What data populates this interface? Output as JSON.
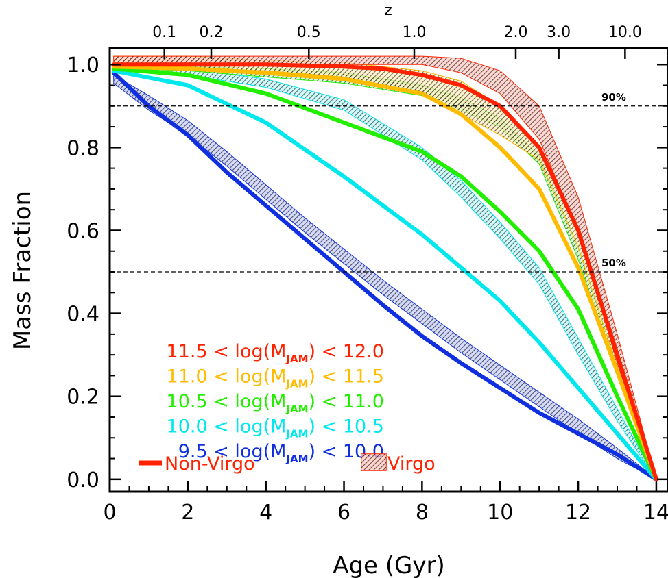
{
  "chart_data": {
    "type": "line",
    "xlabel": "Age (Gyr)",
    "ylabel": "Mass Fraction",
    "top_axis_label": "z",
    "xlim": [
      0,
      14.3
    ],
    "ylim": [
      -0.03,
      1.04
    ],
    "x_ticks": [
      0,
      2,
      4,
      6,
      8,
      10,
      12,
      14
    ],
    "x_tick_labels": [
      "0",
      "2",
      "4",
      "6",
      "8",
      "10",
      "12",
      "14"
    ],
    "y_ticks": [
      0.0,
      0.2,
      0.4,
      0.6,
      0.8,
      1.0
    ],
    "y_tick_labels": [
      "0.0",
      "0.2",
      "0.4",
      "0.6",
      "0.8",
      "1.0"
    ],
    "z_ticks": [
      {
        "label": "0.1",
        "age": 1.4
      },
      {
        "label": "0.2",
        "age": 2.6
      },
      {
        "label": "0.5",
        "age": 5.1
      },
      {
        "label": "1.0",
        "age": 7.8
      },
      {
        "label": "2.0",
        "age": 10.4
      },
      {
        "label": "3.0",
        "age": 11.5
      },
      {
        "label": "10.0",
        "age": 13.2
      }
    ],
    "reference_lines": [
      {
        "y": 0.9,
        "label": "90%"
      },
      {
        "y": 0.5,
        "label": "50%"
      }
    ],
    "series": [
      {
        "name": "11.5 < log(M_JAM) < 12.0",
        "color": "#ff2200",
        "non_virgo": [
          [
            0.1,
            1.0
          ],
          [
            2,
            1.0
          ],
          [
            4,
            1.0
          ],
          [
            6,
            0.995
          ],
          [
            7,
            0.99
          ],
          [
            8,
            0.975
          ],
          [
            9,
            0.95
          ],
          [
            10,
            0.9
          ],
          [
            11,
            0.8
          ],
          [
            12,
            0.6
          ],
          [
            13,
            0.3
          ],
          [
            14,
            0.0
          ]
        ],
        "virgo_upper": [
          [
            0.1,
            1.02
          ],
          [
            2,
            1.02
          ],
          [
            4,
            1.02
          ],
          [
            6,
            1.02
          ],
          [
            8,
            1.02
          ],
          [
            9,
            1.015
          ],
          [
            10,
            0.985
          ],
          [
            11,
            0.9
          ],
          [
            12,
            0.68
          ],
          [
            13,
            0.35
          ],
          [
            14,
            0.0
          ]
        ],
        "virgo_lower": [
          [
            0.1,
            1.0
          ],
          [
            2,
            1.0
          ],
          [
            4,
            1.0
          ],
          [
            6,
            1.0
          ],
          [
            8,
            1.0
          ],
          [
            9,
            0.98
          ],
          [
            10,
            0.93
          ],
          [
            11,
            0.82
          ],
          [
            12,
            0.6
          ],
          [
            13,
            0.28
          ],
          [
            14,
            0.0
          ]
        ]
      },
      {
        "name": "11.0 < log(M_JAM) < 11.5",
        "color": "#ffbb00",
        "non_virgo": [
          [
            0.1,
            0.995
          ],
          [
            2,
            0.99
          ],
          [
            4,
            0.98
          ],
          [
            6,
            0.965
          ],
          [
            8,
            0.93
          ],
          [
            9,
            0.88
          ],
          [
            10,
            0.8
          ],
          [
            11,
            0.7
          ],
          [
            12,
            0.51
          ],
          [
            13,
            0.26
          ],
          [
            14,
            0.0
          ]
        ],
        "virgo_upper": [
          [
            0.1,
            1.02
          ],
          [
            2,
            1.02
          ],
          [
            4,
            1.01
          ],
          [
            6,
            1.005
          ],
          [
            8,
            0.985
          ],
          [
            9,
            0.96
          ],
          [
            10,
            0.9
          ],
          [
            11,
            0.8
          ],
          [
            12,
            0.6
          ],
          [
            13,
            0.3
          ],
          [
            14,
            0.0
          ]
        ],
        "virgo_lower": [
          [
            0.1,
            0.995
          ],
          [
            2,
            0.99
          ],
          [
            4,
            0.985
          ],
          [
            6,
            0.97
          ],
          [
            8,
            0.93
          ],
          [
            9,
            0.88
          ],
          [
            10,
            0.83
          ],
          [
            11,
            0.77
          ],
          [
            12,
            0.56
          ],
          [
            13,
            0.27
          ],
          [
            14,
            0.0
          ]
        ]
      },
      {
        "name": "10.5 < log(M_JAM) < 11.0",
        "color": "#22ee00",
        "non_virgo": [
          [
            0.1,
            0.99
          ],
          [
            2,
            0.975
          ],
          [
            4,
            0.93
          ],
          [
            6,
            0.86
          ],
          [
            8,
            0.79
          ],
          [
            9,
            0.73
          ],
          [
            10,
            0.645
          ],
          [
            11,
            0.55
          ],
          [
            12,
            0.41
          ],
          [
            13,
            0.2
          ],
          [
            14,
            0.0
          ]
        ],
        "virgo_upper": [
          [
            0.1,
            1.0
          ],
          [
            2,
            0.995
          ],
          [
            4,
            0.99
          ],
          [
            6,
            0.98
          ],
          [
            8,
            0.95
          ],
          [
            9,
            0.92
          ],
          [
            10,
            0.87
          ],
          [
            11,
            0.78
          ],
          [
            12,
            0.56
          ],
          [
            13,
            0.27
          ],
          [
            14,
            0.0
          ]
        ],
        "virgo_lower": [
          [
            0.1,
            0.99
          ],
          [
            2,
            0.985
          ],
          [
            4,
            0.97
          ],
          [
            6,
            0.955
          ],
          [
            8,
            0.925
          ],
          [
            9,
            0.89
          ],
          [
            10,
            0.85
          ],
          [
            11,
            0.76
          ],
          [
            12,
            0.53
          ],
          [
            13,
            0.25
          ],
          [
            14,
            0.0
          ]
        ]
      },
      {
        "name": "10.0 < log(M_JAM) < 10.5",
        "color": "#00e8ee",
        "non_virgo": [
          [
            0.1,
            0.985
          ],
          [
            2,
            0.95
          ],
          [
            4,
            0.86
          ],
          [
            6,
            0.73
          ],
          [
            8,
            0.59
          ],
          [
            10,
            0.43
          ],
          [
            11,
            0.33
          ],
          [
            12,
            0.22
          ],
          [
            13,
            0.11
          ],
          [
            14,
            0.0
          ]
        ],
        "virgo_upper": [
          [
            0.1,
            0.995
          ],
          [
            2,
            0.99
          ],
          [
            4,
            0.965
          ],
          [
            6,
            0.915
          ],
          [
            8,
            0.8
          ],
          [
            9,
            0.72
          ],
          [
            10,
            0.62
          ],
          [
            11,
            0.51
          ],
          [
            12,
            0.34
          ],
          [
            13,
            0.17
          ],
          [
            14,
            0.0
          ]
        ],
        "virgo_lower": [
          [
            0.1,
            0.985
          ],
          [
            2,
            0.975
          ],
          [
            4,
            0.945
          ],
          [
            6,
            0.89
          ],
          [
            8,
            0.77
          ],
          [
            9,
            0.68
          ],
          [
            10,
            0.58
          ],
          [
            11,
            0.47
          ],
          [
            12,
            0.3
          ],
          [
            13,
            0.14
          ],
          [
            14,
            0.0
          ]
        ]
      },
      {
        "name": "9.5 < log(M_JAM) < 10.0",
        "color": "#1030e0",
        "non_virgo": [
          [
            0.1,
            0.98
          ],
          [
            1,
            0.9
          ],
          [
            2,
            0.83
          ],
          [
            3,
            0.74
          ],
          [
            4,
            0.66
          ],
          [
            5,
            0.58
          ],
          [
            6,
            0.5
          ],
          [
            7,
            0.42
          ],
          [
            8,
            0.345
          ],
          [
            9,
            0.28
          ],
          [
            10,
            0.22
          ],
          [
            11,
            0.16
          ],
          [
            12,
            0.11
          ],
          [
            13,
            0.06
          ],
          [
            14,
            0.0
          ]
        ],
        "virgo_upper": [
          [
            0.1,
            0.975
          ],
          [
            1,
            0.925
          ],
          [
            2,
            0.865
          ],
          [
            3,
            0.79
          ],
          [
            4,
            0.71
          ],
          [
            5,
            0.63
          ],
          [
            6,
            0.555
          ],
          [
            7,
            0.48
          ],
          [
            8,
            0.41
          ],
          [
            9,
            0.34
          ],
          [
            10,
            0.275
          ],
          [
            11,
            0.21
          ],
          [
            12,
            0.145
          ],
          [
            13,
            0.075
          ],
          [
            14,
            0.0
          ]
        ],
        "virgo_lower": [
          [
            0.1,
            0.955
          ],
          [
            1,
            0.89
          ],
          [
            2,
            0.83
          ],
          [
            3,
            0.755
          ],
          [
            4,
            0.675
          ],
          [
            5,
            0.595
          ],
          [
            6,
            0.52
          ],
          [
            7,
            0.445
          ],
          [
            8,
            0.375
          ],
          [
            9,
            0.305
          ],
          [
            10,
            0.24
          ],
          [
            11,
            0.175
          ],
          [
            12,
            0.11
          ],
          [
            13,
            0.05
          ],
          [
            14,
            0.0
          ]
        ]
      }
    ],
    "legend": {
      "non_virgo_label": "Non-Virgo",
      "virgo_label": "Virgo",
      "label_color": "#ff2200"
    }
  },
  "legend_rows": [
    {
      "low": "11.5",
      "mid": "< log(M",
      "sub": "JAM",
      "close": ")",
      "high": "< 12.0",
      "color": "#ff2200"
    },
    {
      "low": "11.0",
      "mid": "< log(M",
      "sub": "JAM",
      "close": ")",
      "high": "< 11.5",
      "color": "#ffbb00"
    },
    {
      "low": "10.5",
      "mid": "< log(M",
      "sub": "JAM",
      "close": ")",
      "high": "< 11.0",
      "color": "#22ee00"
    },
    {
      "low": "10.0",
      "mid": "< log(M",
      "sub": "JAM",
      "close": ")",
      "high": "< 10.5",
      "color": "#00e8ee"
    },
    {
      "low": "9.5",
      "mid": "< log(M",
      "sub": "JAM",
      "close": ")",
      "high": "< 10.0",
      "color": "#1030e0"
    }
  ]
}
